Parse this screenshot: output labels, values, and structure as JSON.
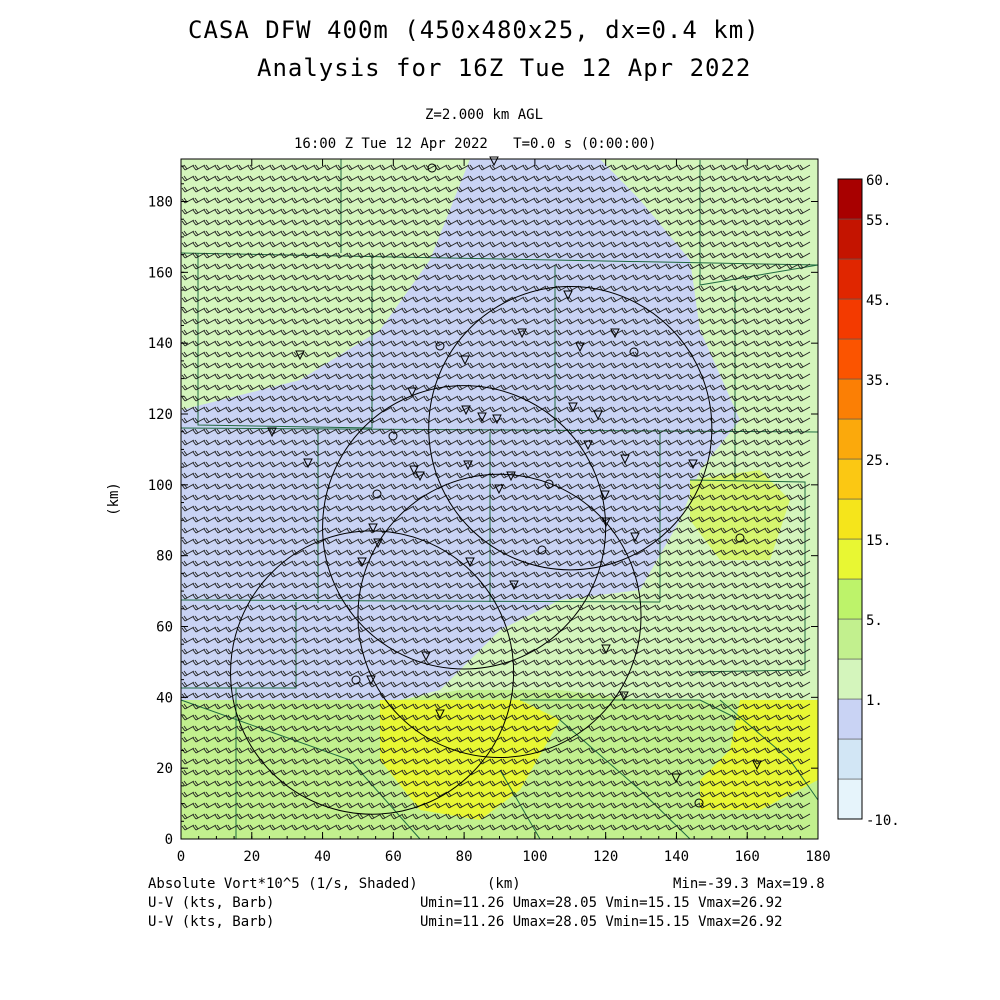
{
  "header": {
    "title_line1": "CASA DFW 400m (450x480x25, dx=0.4 km)",
    "title_line2": "Analysis for 16Z Tue 12 Apr 2022",
    "level": "Z=2.000 km AGL",
    "time": "16:00 Z Tue 12 Apr 2022   T=0.0 s (0:00:00)"
  },
  "axes": {
    "x_ticks": [
      "0",
      "20",
      "40",
      "60",
      "80",
      "100",
      "120",
      "140",
      "160",
      "180"
    ],
    "y_ticks": [
      "0",
      "20",
      "40",
      "60",
      "80",
      "100",
      "120",
      "140",
      "160",
      "180"
    ],
    "x_label": "(km)",
    "y_label": "(km)",
    "x_range": [
      0,
      180
    ],
    "y_range": [
      0,
      192
    ]
  },
  "colorbar": {
    "labels": [
      "60.",
      "55.",
      "45.",
      "35.",
      "25.",
      "15.",
      "5.",
      "1.",
      "-10."
    ],
    "colors": [
      "#e6f4fb",
      "#d2e6f5",
      "#c9d3f4",
      "#d4f5bc",
      "#c2f08e",
      "#bdf36a",
      "#e8f733",
      "#f5e51b",
      "#fbc813",
      "#fba90c",
      "#fb7f05",
      "#fb5400",
      "#f33a00",
      "#e02600",
      "#c41400",
      "#a80000"
    ]
  },
  "footer": {
    "field_label": "Absolute Vort*10^5 (1/s, Shaded)",
    "x_unit": "(km)",
    "minmax": "Min=-39.3 Max=19.8",
    "barb1_label": "U-V (kts, Barb)",
    "barb1_stats": "Umin=11.26 Umax=28.05 Vmin=15.15 Vmax=26.92",
    "barb2_label": "U-V (kts, Barb)",
    "barb2_stats": "Umin=11.26 Umax=28.05 Vmin=15.15 Vmax=26.92"
  },
  "map": {
    "radar_ranges_km": [
      {
        "center": [
          110,
          116
        ],
        "radius": 40
      },
      {
        "center": [
          80,
          88
        ],
        "radius": 40
      },
      {
        "center": [
          90,
          63
        ],
        "radius": 40
      },
      {
        "center": [
          54,
          47
        ],
        "radius": 40
      }
    ],
    "field_colors": {
      "negative": "#c9d3f4",
      "low": "#d4f5bc",
      "mid": "#c2f08e",
      "high": "#e8f733",
      "barb": "#202020",
      "county_line": "#1f6b40"
    }
  }
}
